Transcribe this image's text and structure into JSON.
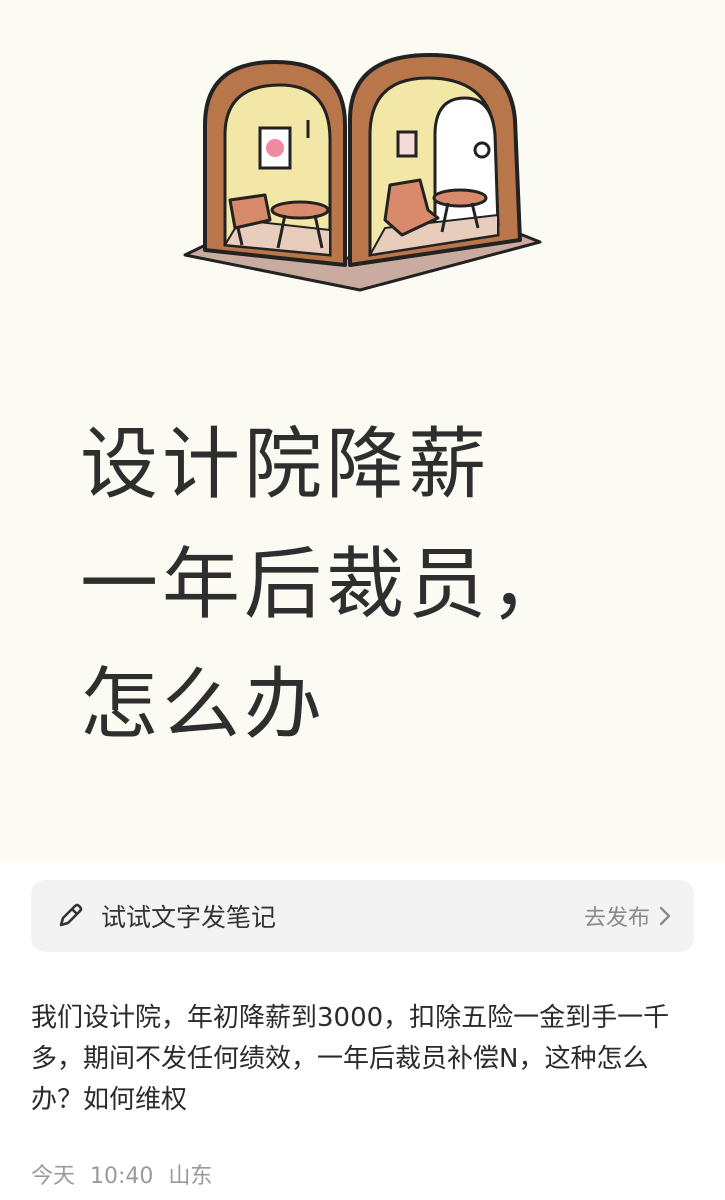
{
  "cover": {
    "title_lines": [
      "设计院降薪",
      "一年后裁员，",
      "怎么办"
    ]
  },
  "composer": {
    "icon": "pencil-icon",
    "placeholder_label": "试试文字发笔记",
    "publish_label": "去发布",
    "publish_icon": "chevron-right-icon"
  },
  "post": {
    "body": "我们设计院，年初降薪到3000，扣除五险一金到手一千多，期间不发任何绩效，一年后裁员补偿N，这种怎么办？如何维权",
    "meta": {
      "date": "今天",
      "time": "10:40",
      "location": "山东"
    }
  },
  "colors": {
    "cover_background": "#fcfbf3",
    "prompt_background": "#f3f3f3",
    "arch_brown": "#b9764b",
    "wall_yellow": "#f2e7a6"
  }
}
